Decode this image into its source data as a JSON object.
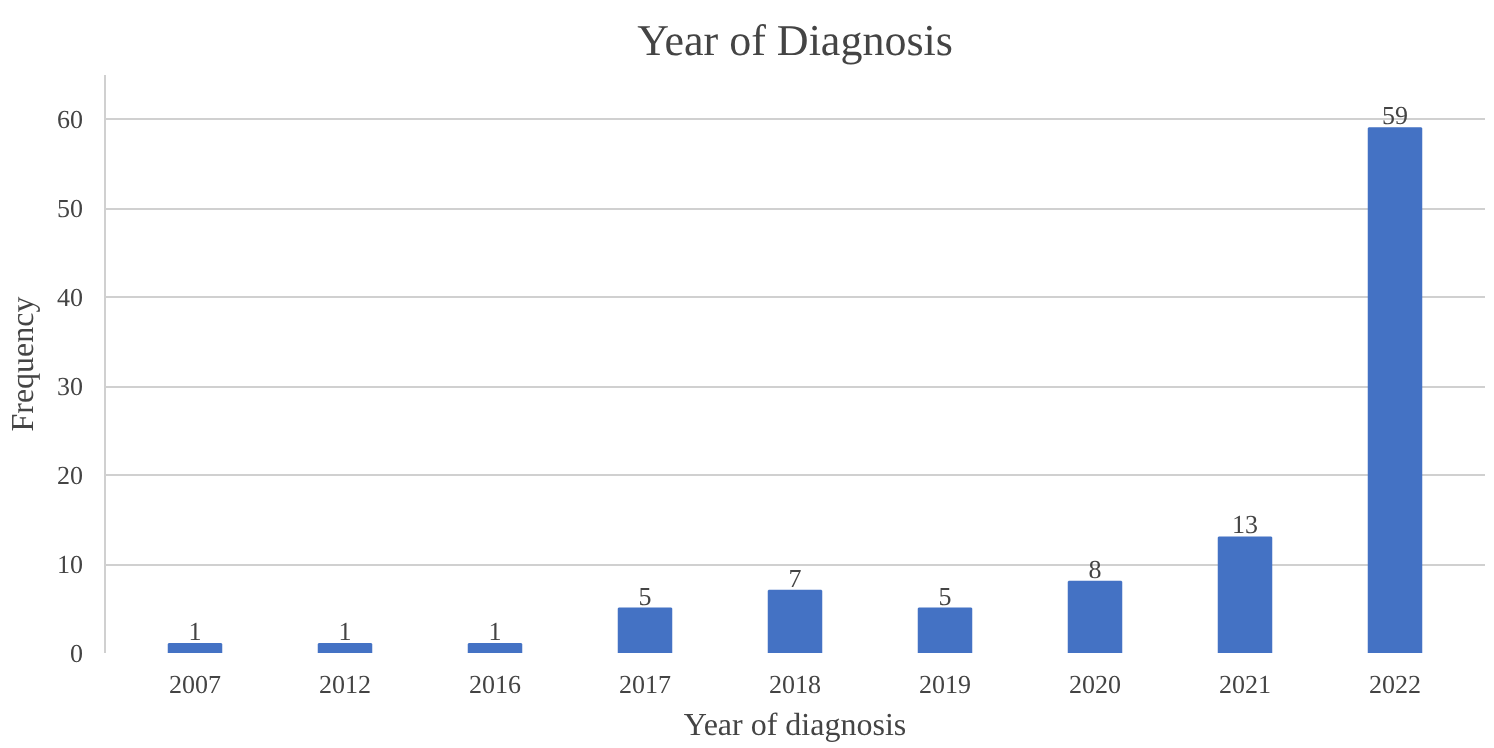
{
  "chart_data": {
    "type": "bar",
    "title": "Year of Diagnosis",
    "xlabel": "Year of diagnosis",
    "ylabel": "Frequency",
    "categories": [
      "2007",
      "2012",
      "2016",
      "2017",
      "2018",
      "2019",
      "2020",
      "2021",
      "2022"
    ],
    "values": [
      1,
      1,
      1,
      5,
      7,
      5,
      8,
      13,
      59
    ],
    "color": "#4472c4",
    "ylim": [
      0,
      65
    ],
    "yticks": [
      0,
      10,
      20,
      30,
      40,
      50,
      60
    ],
    "grid": "y",
    "data_labels": true
  }
}
